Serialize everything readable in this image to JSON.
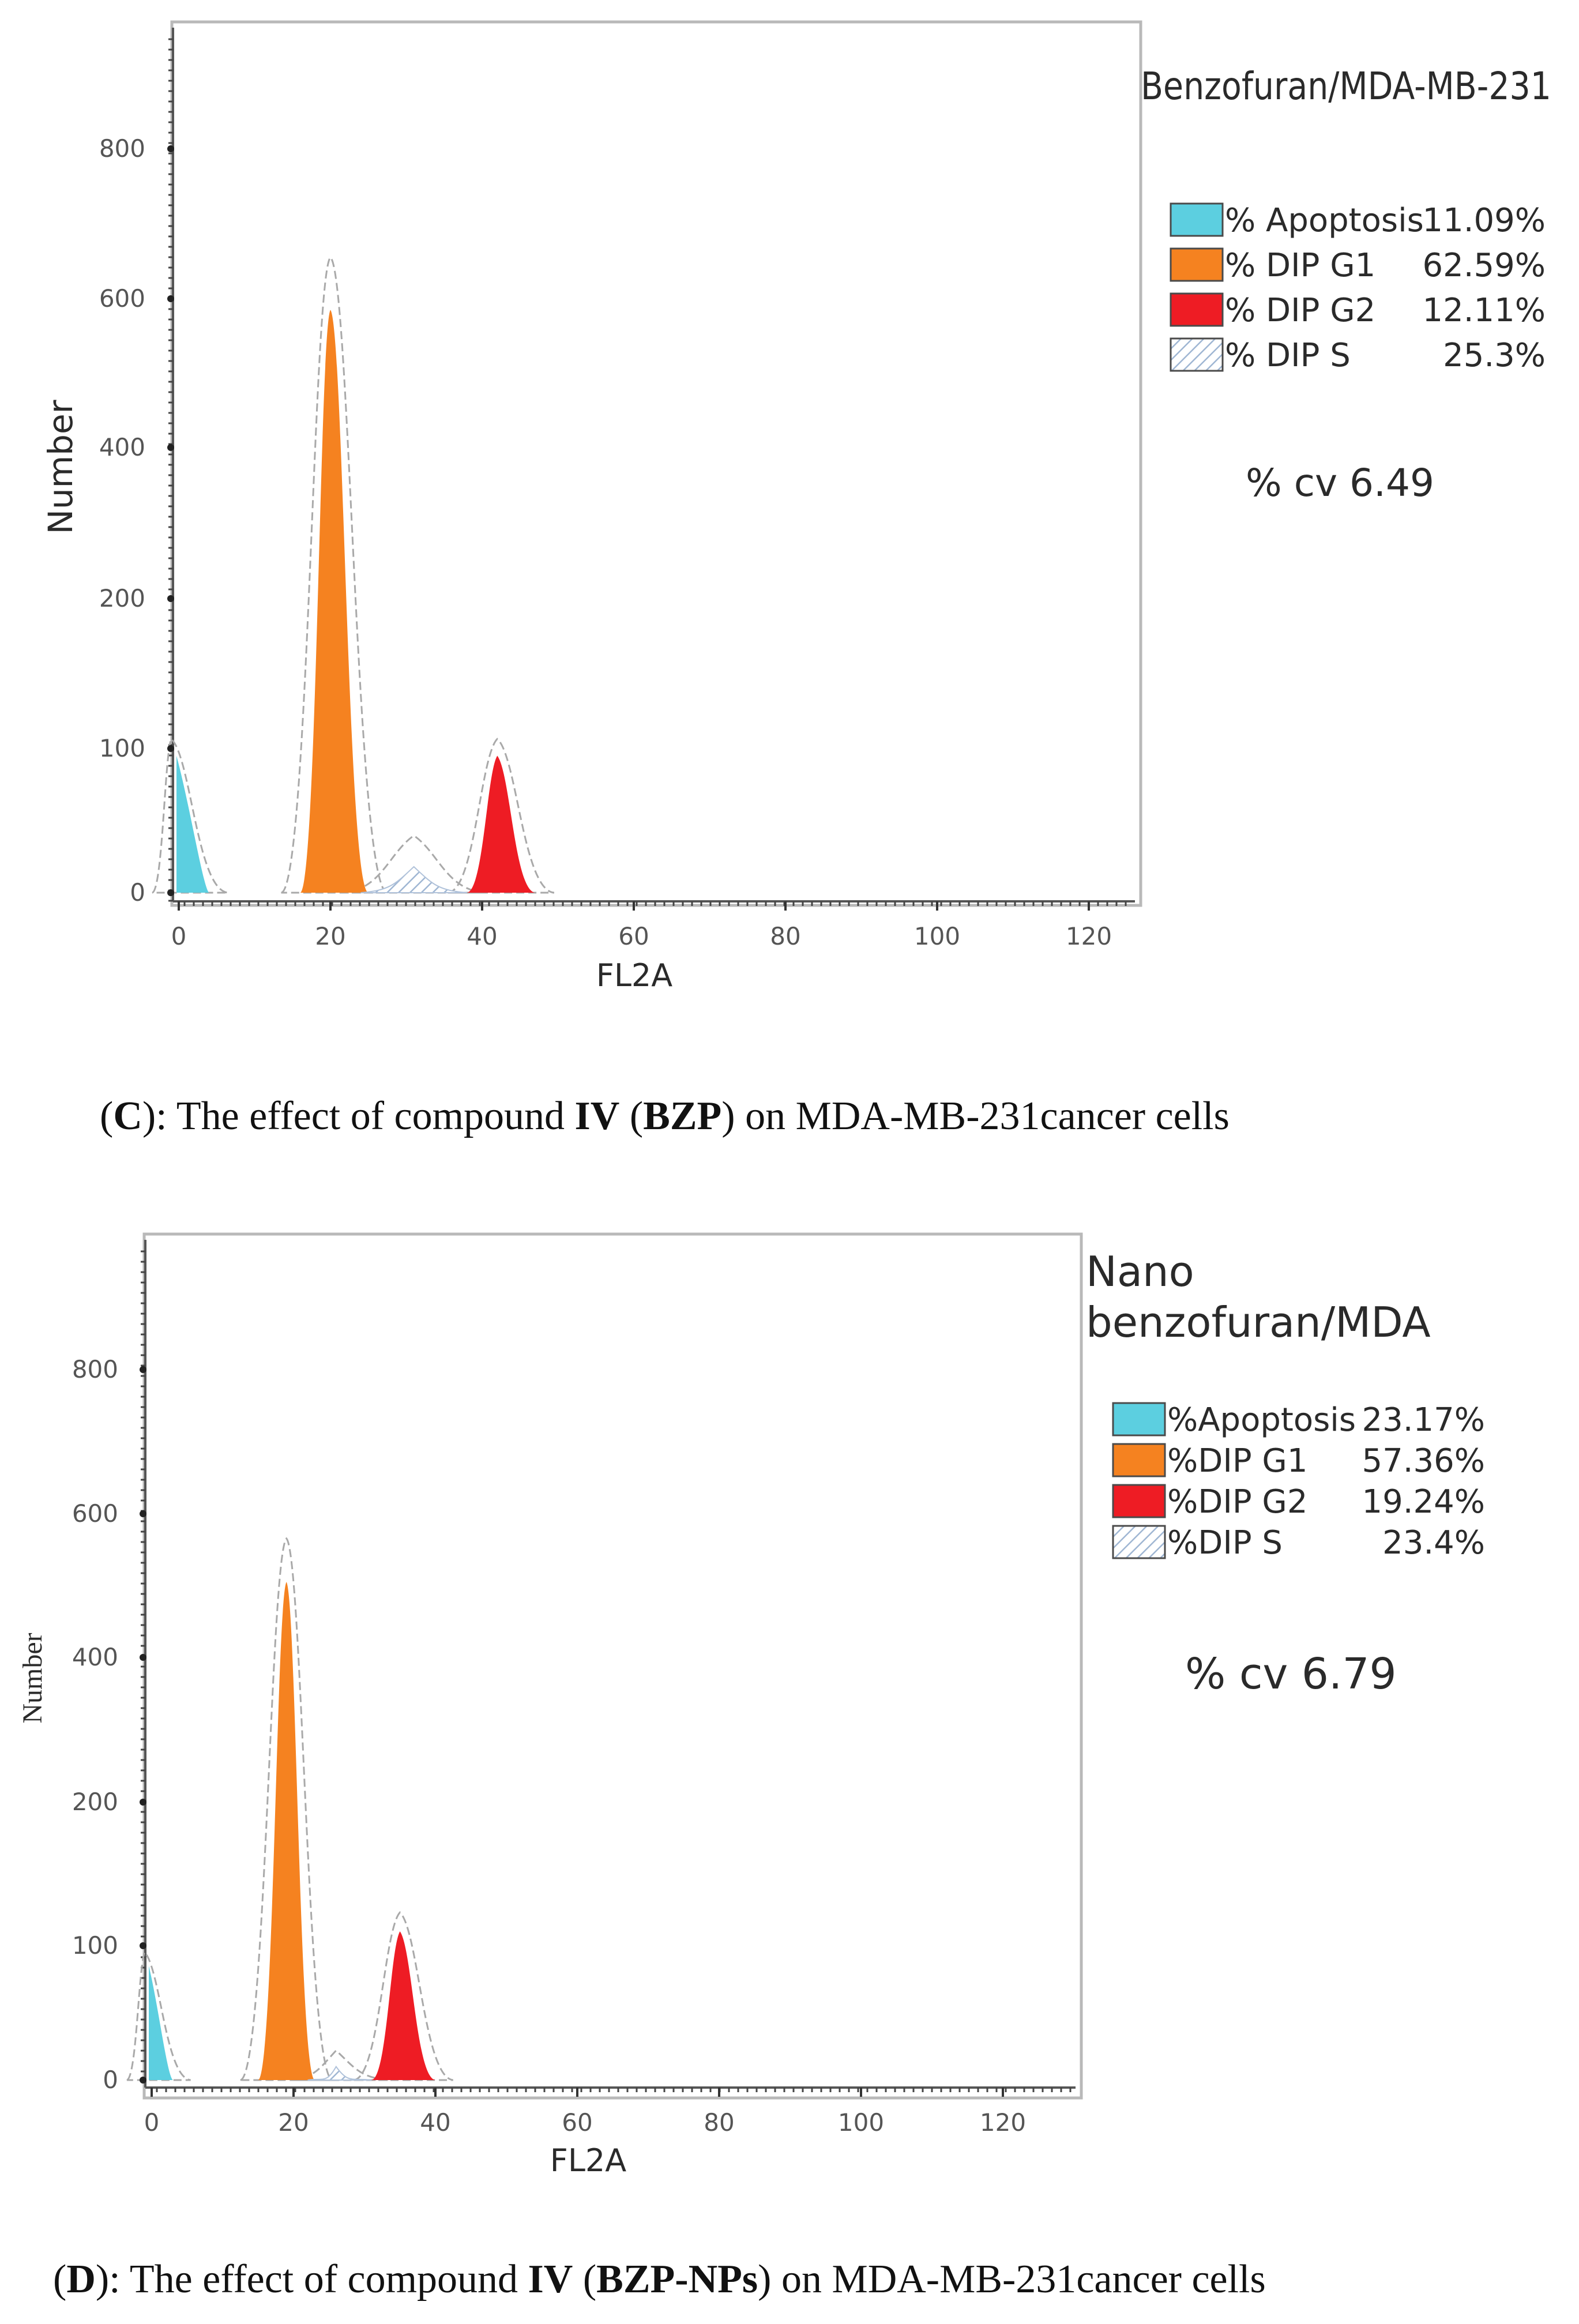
{
  "chart_data": [
    {
      "type": "histogram",
      "panel": "C",
      "title": "Benzofuran/MDA-MB-231",
      "title_lines": [
        "Benzofuran/MDA-MB-231"
      ],
      "xlabel": "FL2A",
      "ylabel": "Number",
      "x_ticks": [
        "0",
        "20",
        "40",
        "60",
        "80",
        "100",
        "120"
      ],
      "y_ticks": [
        "0",
        "100",
        "200",
        "400",
        "600",
        "800"
      ],
      "legend": [
        {
          "label": "% Apoptosis",
          "value": "11.09%",
          "color": "#5ccfe0",
          "pattern": false
        },
        {
          "label": "% DIP G1",
          "value": "62.59%",
          "color": "#f58220",
          "pattern": false
        },
        {
          "label": "% DIP G2",
          "value": "12.11%",
          "color": "#ee1c24",
          "pattern": false
        },
        {
          "label": "% DIP S",
          "value": "25.3%",
          "color": "#ffffff",
          "pattern": true
        }
      ],
      "cv_text": "% cv 6.49",
      "peaks": [
        {
          "name": "Apoptosis",
          "color": "#5ccfe0",
          "x_start": -1,
          "x_end": 4,
          "peak_x": -1,
          "peak_y": 95
        },
        {
          "name": "DIP G1",
          "color": "#f58220",
          "x_start": 16,
          "x_end": 25,
          "peak_x": 20,
          "peak_y": 585
        },
        {
          "name": "DIP G2",
          "color": "#ee1c24",
          "x_start": 38,
          "x_end": 47,
          "peak_x": 42,
          "peak_y": 95
        },
        {
          "name": "DIP S",
          "color": "#d8e4f2",
          "x_start": 24,
          "x_end": 38,
          "peak_x": 31,
          "peak_y": 18
        }
      ],
      "caption": {
        "label": "C",
        "text_a": "): The effect of compound ",
        "compound": "IV",
        "text_b": " (",
        "code": "BZP",
        "text_c": ") on MDA-MB-231cancer cells"
      }
    },
    {
      "type": "histogram",
      "panel": "D",
      "title": "Nano benzofuran/MDA",
      "title_lines": [
        "Nano",
        "benzofuran/MDA"
      ],
      "xlabel": "FL2A",
      "ylabel": "Number",
      "x_ticks": [
        "0",
        "20",
        "40",
        "60",
        "80",
        "100",
        "120"
      ],
      "y_ticks": [
        "0",
        "100",
        "200",
        "400",
        "600",
        "800"
      ],
      "legend": [
        {
          "label": "%Apoptosis",
          "value": "23.17%",
          "color": "#5ccfe0",
          "pattern": false
        },
        {
          "label": "%DIP G1",
          "value": "57.36%",
          "color": "#f58220",
          "pattern": false
        },
        {
          "label": "%DIP G2",
          "value": "19.24%",
          "color": "#ee1c24",
          "pattern": false
        },
        {
          "label": "%DIP S",
          "value": "23.4%",
          "color": "#ffffff",
          "pattern": true
        }
      ],
      "cv_text": "% cv 6.79",
      "peaks": [
        {
          "name": "Apoptosis",
          "color": "#5ccfe0",
          "x_start": -1,
          "x_end": 3,
          "peak_x": -1,
          "peak_y": 85
        },
        {
          "name": "DIP G1",
          "color": "#f58220",
          "x_start": 15,
          "x_end": 23,
          "peak_x": 19,
          "peak_y": 505
        },
        {
          "name": "DIP G2",
          "color": "#ee1c24",
          "x_start": 31,
          "x_end": 40,
          "peak_x": 35,
          "peak_y": 110
        },
        {
          "name": "DIP S",
          "color": "#d8e4f2",
          "x_start": 22,
          "x_end": 31,
          "peak_x": 26,
          "peak_y": 10
        }
      ],
      "caption": {
        "label": "D",
        "text_a": "): The effect of compound ",
        "compound": "IV",
        "text_b": " (",
        "code": "BZP-NPs",
        "text_c": ") on MDA-MB-231cancer cells"
      }
    }
  ]
}
